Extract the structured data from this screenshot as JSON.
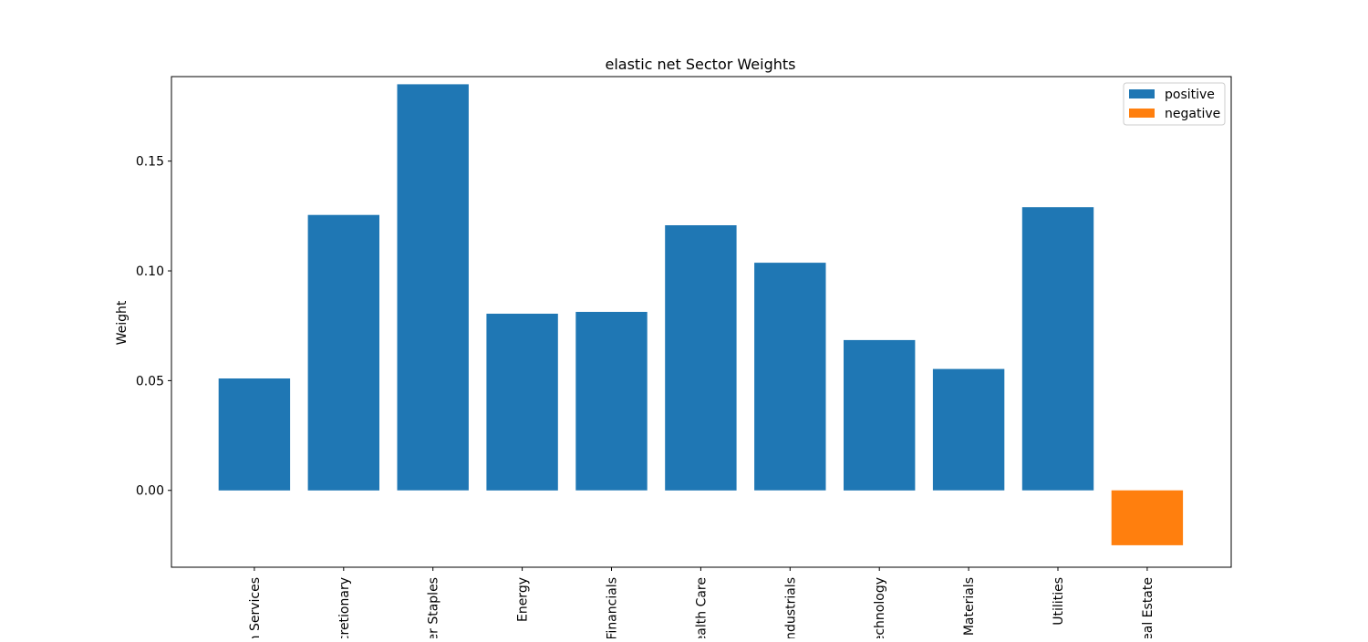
{
  "chart_data": {
    "type": "bar",
    "title": "elastic net Sector Weights",
    "xlabel": "",
    "ylabel": "Weight",
    "categories": [
      "Communication Services",
      "Consumer Discretionary",
      "Consumer Staples",
      "Energy",
      "Financials",
      "Health Care",
      "Industrials",
      "Information Technology",
      "Materials",
      "Utilities",
      "Real Estate"
    ],
    "category_tick_labels": [
      "n Services",
      "cretionary",
      "er Staples",
      "Energy",
      "Financials",
      "ealth Care",
      "ndustrials",
      "echnology",
      "Materials",
      "Utilities",
      "eal Estate"
    ],
    "values": [
      0.051,
      0.1255,
      0.185,
      0.0805,
      0.0813,
      0.1208,
      0.1037,
      0.0685,
      0.0553,
      0.129,
      -0.025
    ],
    "ylim": [
      -0.035,
      0.1885
    ],
    "yticks": [
      0.0,
      0.05,
      0.1,
      0.15
    ],
    "ytick_labels": [
      "0.00",
      "0.05",
      "0.10",
      "0.15"
    ],
    "grid": false,
    "legend": {
      "placement": "top-right",
      "entries": [
        {
          "label": "positive",
          "color": "#1f77b4"
        },
        {
          "label": "negative",
          "color": "#ff7f0e"
        }
      ]
    },
    "colors": {
      "positive": "#1f77b4",
      "negative": "#ff7f0e"
    }
  }
}
